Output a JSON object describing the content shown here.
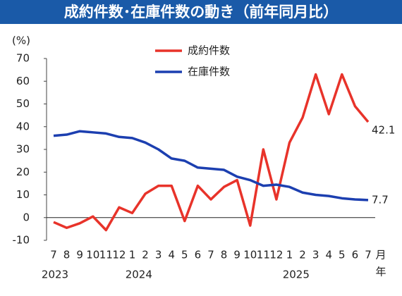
{
  "chart_data": {
    "type": "line",
    "title": "成約件数･在庫件数の動き（前年同月比）",
    "y_unit": "(%)",
    "x_unit": "月",
    "year_unit": "年",
    "categories": [
      "7",
      "8",
      "9",
      "10",
      "11",
      "12",
      "1",
      "2",
      "3",
      "4",
      "5",
      "6",
      "7",
      "8",
      "9",
      "10",
      "11",
      "12",
      "1",
      "2",
      "3",
      "4",
      "5",
      "6",
      "7"
    ],
    "years": [
      "2023",
      "2024",
      "2025"
    ],
    "series": [
      {
        "name": "成約件数",
        "color": "#e8332a",
        "values": [
          -2,
          -4.5,
          -2.5,
          0.5,
          -5.5,
          4.5,
          2,
          10.5,
          14,
          14,
          -1.5,
          14,
          8,
          13.5,
          16.5,
          -3.5,
          30,
          8,
          33,
          44,
          63,
          45.5,
          63,
          49,
          42.1
        ]
      },
      {
        "name": "在庫件数",
        "color": "#1c3fb0",
        "values": [
          36,
          36.5,
          38,
          37.5,
          37,
          35.5,
          35,
          33,
          30,
          26,
          25,
          22,
          21.5,
          21,
          18,
          16.5,
          14,
          14.5,
          13.5,
          11,
          10,
          9.5,
          8.5,
          8,
          7.7
        ]
      }
    ],
    "ylim": [
      -10,
      70
    ],
    "yticks": [
      70,
      60,
      50,
      40,
      30,
      20,
      10,
      0,
      -10
    ],
    "negative_tick_color": "#e8332a"
  }
}
